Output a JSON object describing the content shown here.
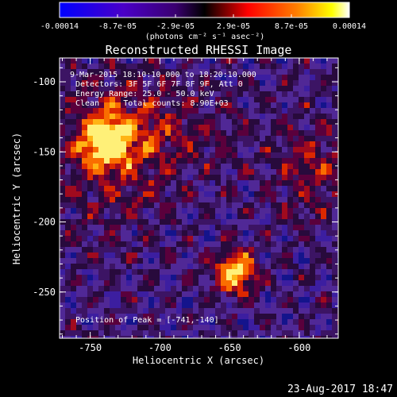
{
  "colorbar": {
    "tick_labels": [
      "-0.00014",
      "-8.7e-05",
      "-2.9e-05",
      "2.9e-05",
      "8.7e-05",
      "0.00014"
    ],
    "units_label": "(photons cm⁻² s⁻¹ asec⁻²)",
    "colors": [
      "#0000ff",
      "#4400cc",
      "#330066",
      "#000000",
      "#ff0000",
      "#ff8800",
      "#ffff00",
      "#ffffff"
    ]
  },
  "plot": {
    "title": "Reconstructed RHESSI Image",
    "annotations": [
      "9-Mar-2015 18:10:10.000 to 18:20:10.000",
      "Detectors: 3F 5F 6F 7F 8F 9F, Att 0",
      "Energy Range: 25.0 - 50.0 keV",
      "Clean     Total counts: 8.90E+03"
    ],
    "peak_label": "Position of Peak = [-741,-140]"
  },
  "footer": {
    "timestamp": "23-Aug-2017 18:47"
  },
  "chart_data": {
    "type": "heatmap",
    "title": "Reconstructed RHESSI Image",
    "xlabel": "Heliocentric X (arcsec)",
    "ylabel": "Heliocentric Y (arcsec)",
    "xlim": [
      -772,
      -572
    ],
    "ylim": [
      -283,
      -83
    ],
    "x_ticks": [
      -750,
      -700,
      -650,
      -600
    ],
    "y_ticks": [
      -100,
      -150,
      -200,
      -250
    ],
    "x_tick_labels": [
      "-750",
      "-700",
      "-650",
      "-600"
    ],
    "y_tick_labels": [
      "-100",
      "-150",
      "-200",
      "-250"
    ],
    "colorbar_range": [
      -0.00014,
      0.00014
    ],
    "sources": [
      {
        "x": -741,
        "y": -140,
        "peak": true
      },
      {
        "x": -647,
        "y": -234,
        "peak": false
      }
    ]
  }
}
